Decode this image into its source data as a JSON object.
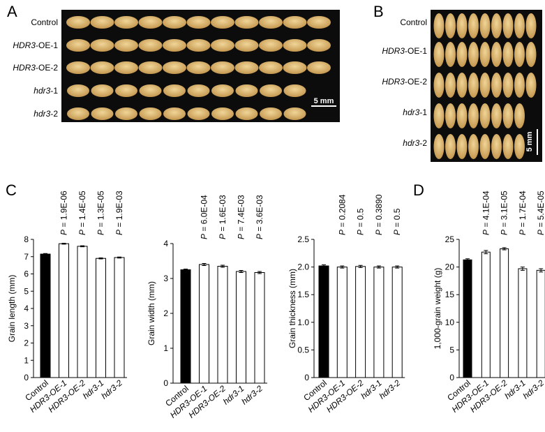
{
  "panel_labels": [
    "A",
    "B",
    "C",
    "D"
  ],
  "photo_a": {
    "labels": [
      "Control",
      "HDR3-OE-1",
      "HDR3-OE-2",
      "hdr3-1",
      "hdr3-2"
    ],
    "scale_bar": "5 mm"
  },
  "photo_b": {
    "labels": [
      "Control",
      "HDR3-OE-1",
      "HDR3-OE-2",
      "hdr3-1",
      "hdr3-2"
    ],
    "scale_bar": "5 mm"
  },
  "chart_data": [
    {
      "type": "bar",
      "y_label": "Grain length (mm)",
      "categories": [
        "Control",
        "HDR3-OE-1",
        "HDR3-OE-2",
        "hdr3-1",
        "hdr3-2"
      ],
      "values": [
        7.15,
        7.75,
        7.6,
        6.9,
        6.95
      ],
      "errors": [
        0.03,
        0.03,
        0.03,
        0.03,
        0.03
      ],
      "colors": [
        "#000000",
        "#ffffff",
        "#ffffff",
        "#ffffff",
        "#ffffff"
      ],
      "annotations": [
        null,
        "P = 1.9E-06",
        "P = 1.4E-05",
        "P = 1.3E-05",
        "P = 1.9E-03"
      ],
      "ylim": [
        0,
        8
      ],
      "yticks": [
        0,
        1,
        2,
        3,
        4,
        5,
        6,
        7,
        8
      ]
    },
    {
      "type": "bar",
      "y_label": "Grain width (mm)",
      "categories": [
        "Control",
        "HDR3-OE-1",
        "HDR3-OE-2",
        "hdr3-1",
        "hdr3-2"
      ],
      "values": [
        3.25,
        3.4,
        3.35,
        3.2,
        3.17
      ],
      "errors": [
        0.02,
        0.03,
        0.03,
        0.03,
        0.03
      ],
      "colors": [
        "#000000",
        "#ffffff",
        "#ffffff",
        "#ffffff",
        "#ffffff"
      ],
      "annotations": [
        null,
        "P = 6.0E-04",
        "P = 1.6E-03",
        "P = 7.4E-03",
        "P = 3.6E-03"
      ],
      "ylim": [
        0,
        4
      ],
      "yticks": [
        0,
        1,
        2,
        3,
        4
      ]
    },
    {
      "type": "bar",
      "y_label": "Grain thickness (mm)",
      "categories": [
        "Control",
        "HDR3-OE-1",
        "HDR3-OE-2",
        "hdr3-1",
        "hdr3-2"
      ],
      "values": [
        2.02,
        2.0,
        2.01,
        2.0,
        2.0
      ],
      "errors": [
        0.02,
        0.02,
        0.02,
        0.02,
        0.02
      ],
      "colors": [
        "#000000",
        "#ffffff",
        "#ffffff",
        "#ffffff",
        "#ffffff"
      ],
      "annotations": [
        null,
        "P = 0.2084",
        "P = 0.5",
        "P = 0.3890",
        "P = 0.5"
      ],
      "ylim": [
        0,
        2.5
      ],
      "yticks": [
        0,
        0.5,
        {
          "value": 1,
          "label": "1.0"
        },
        1.5,
        {
          "value": 2,
          "label": "2.0"
        },
        2.5
      ]
    },
    {
      "type": "bar",
      "y_label": "1,000-grain weight (g)",
      "categories": [
        "Control",
        "HDR3-OE-1",
        "HDR3-OE-2",
        "hdr3-1",
        "hdr3-2"
      ],
      "values": [
        21.3,
        22.7,
        23.3,
        19.7,
        19.4
      ],
      "errors": [
        0.2,
        0.3,
        0.2,
        0.3,
        0.3
      ],
      "colors": [
        "#000000",
        "#ffffff",
        "#ffffff",
        "#ffffff",
        "#ffffff"
      ],
      "annotations": [
        null,
        "P = 4.1E-04",
        "P = 3.1E-05",
        "P = 1.7E-04",
        "P = 5.4E-05"
      ],
      "ylim": [
        0,
        25
      ],
      "yticks": [
        0,
        5,
        10,
        15,
        20,
        25
      ]
    }
  ]
}
